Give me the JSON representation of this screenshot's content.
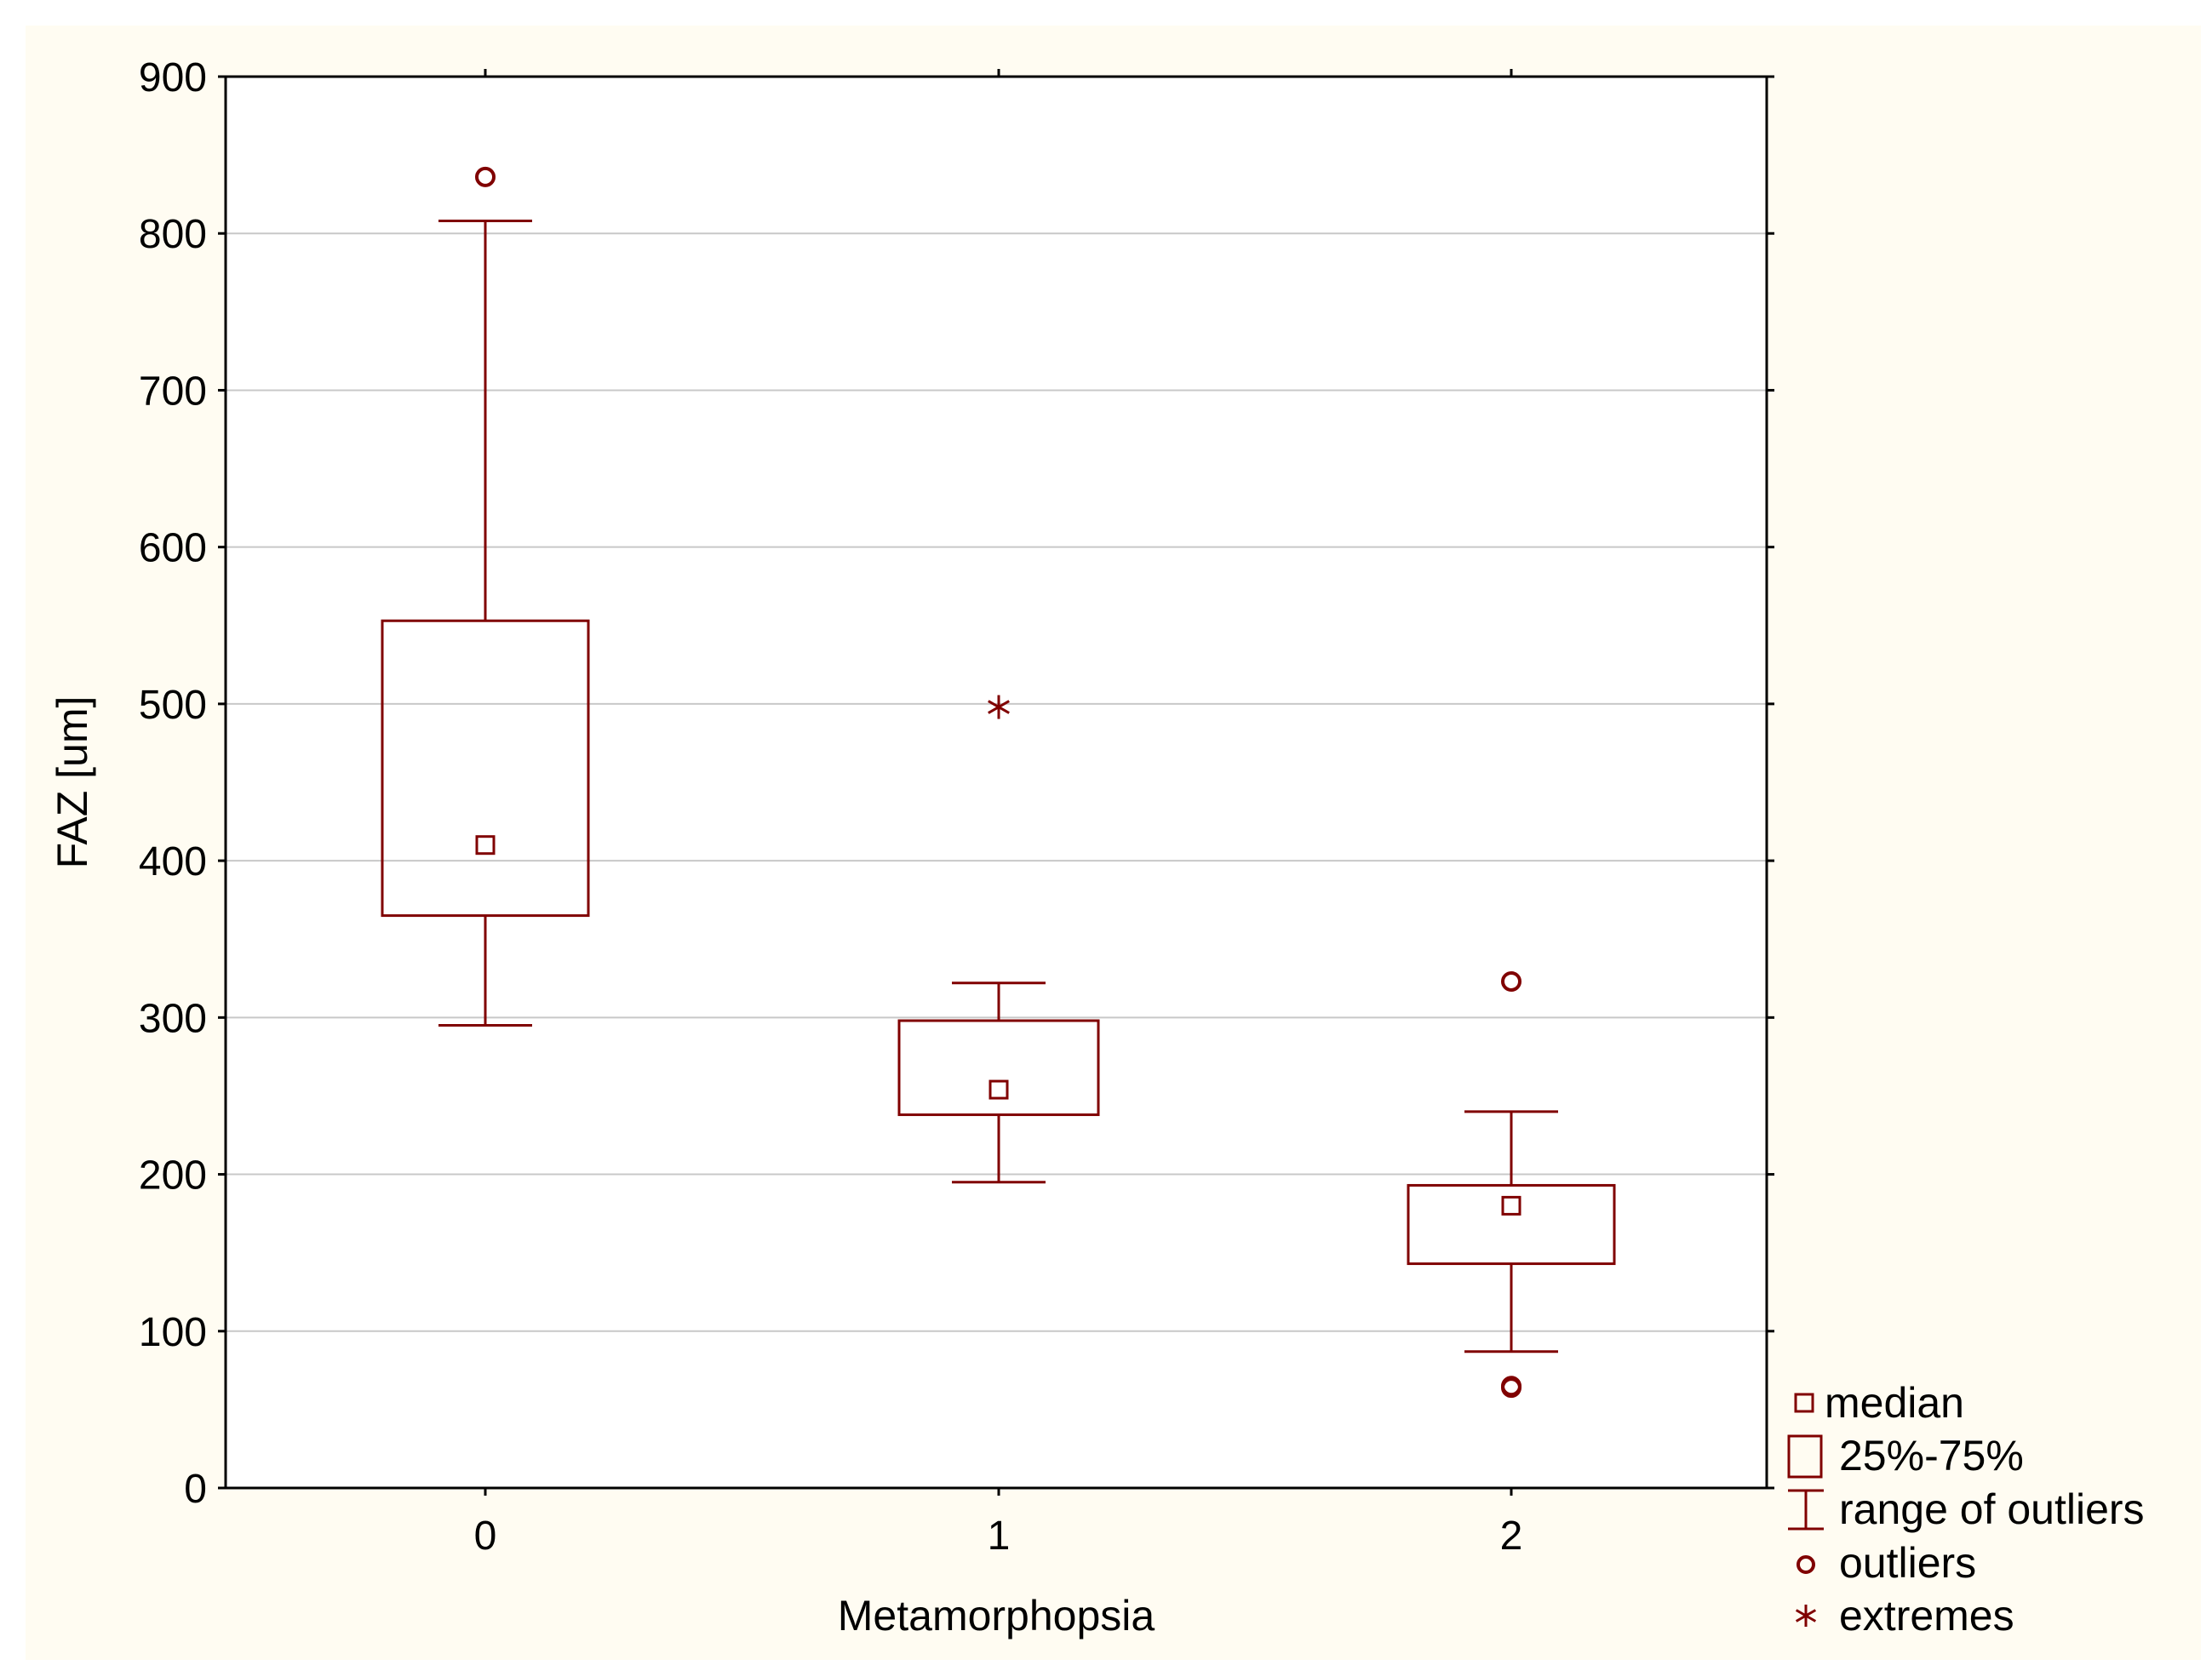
{
  "chart_data": {
    "type": "box",
    "title": "",
    "xlabel": "Metamorphopsia",
    "ylabel": "FAZ [um]",
    "ylim": [
      0,
      900
    ],
    "yticks": [
      0,
      100,
      200,
      300,
      400,
      500,
      600,
      700,
      800,
      900
    ],
    "categories": [
      "0",
      "1",
      "2"
    ],
    "grid": true,
    "groups": [
      {
        "category": "0",
        "median": 410,
        "q1": 365,
        "q3": 553,
        "whisker_low": 295,
        "whisker_high": 808,
        "outliers": [
          836
        ],
        "extremes": []
      },
      {
        "category": "1",
        "median": 254,
        "q1": 238,
        "q3": 298,
        "whisker_low": 195,
        "whisker_high": 322,
        "outliers": [],
        "extremes": [
          498
        ]
      },
      {
        "category": "2",
        "median": 180,
        "q1": 143,
        "q3": 193,
        "whisker_low": 87,
        "whisker_high": 240,
        "outliers": [
          323,
          64,
          65
        ],
        "extremes": []
      }
    ],
    "legend": {
      "position": "bottom-right",
      "items": [
        {
          "symbol": "median",
          "label": "median"
        },
        {
          "symbol": "box",
          "label": "25%-75%"
        },
        {
          "symbol": "whisker",
          "label": "range of outliers"
        },
        {
          "symbol": "outlier",
          "label": "outliers"
        },
        {
          "symbol": "extreme",
          "label": "extremes"
        }
      ]
    },
    "colors": {
      "series": "#800000",
      "background": "#fffcf2",
      "plot_background": "#ffffff",
      "grid": "#c8c8c8",
      "axis": "#000000"
    }
  }
}
